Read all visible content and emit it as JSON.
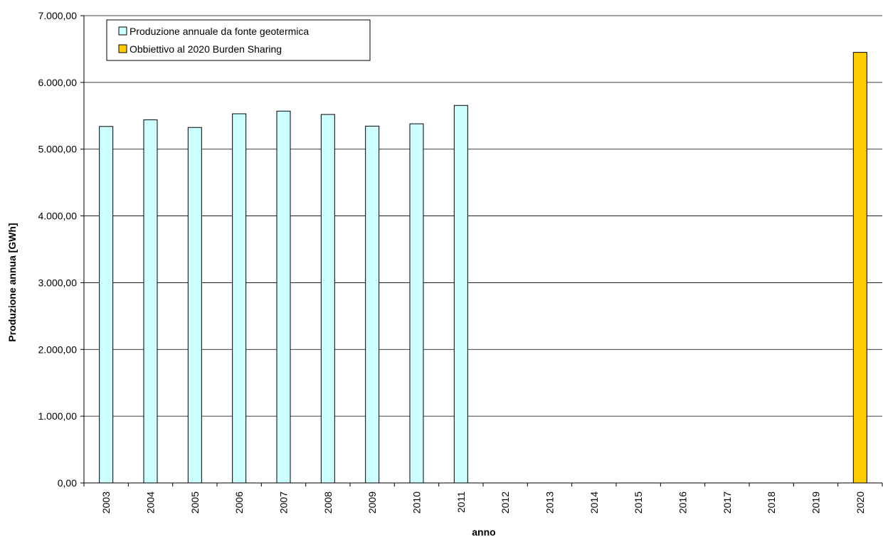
{
  "chart_data": {
    "type": "bar",
    "xlabel": "anno",
    "ylabel": "Produzione annua [GWh]",
    "ylim": [
      0,
      7000
    ],
    "yticks": [
      0,
      1000,
      2000,
      3000,
      4000,
      5000,
      6000,
      7000
    ],
    "ytick_labels": [
      "0,00",
      "1.000,00",
      "2.000,00",
      "3.000,00",
      "4.000,00",
      "5.000,00",
      "6.000,00",
      "7.000,00"
    ],
    "categories": [
      "2003",
      "2004",
      "2005",
      "2006",
      "2007",
      "2008",
      "2009",
      "2010",
      "2011",
      "2012",
      "2013",
      "2014",
      "2015",
      "2016",
      "2017",
      "2018",
      "2019",
      "2020"
    ],
    "grid": true,
    "legend_position": "top-left",
    "series": [
      {
        "name": "Produzione annuale da fonte geotermica",
        "color": "#ccffff",
        "values": [
          5340,
          5440,
          5325,
          5530,
          5570,
          5520,
          5345,
          5380,
          5655,
          null,
          null,
          null,
          null,
          null,
          null,
          null,
          null,
          null
        ]
      },
      {
        "name": "Obbiettivo al 2020 Burden Sharing",
        "color": "#ffcc00",
        "values": [
          null,
          null,
          null,
          null,
          null,
          null,
          null,
          null,
          null,
          null,
          null,
          null,
          null,
          null,
          null,
          null,
          null,
          6450
        ]
      }
    ]
  }
}
